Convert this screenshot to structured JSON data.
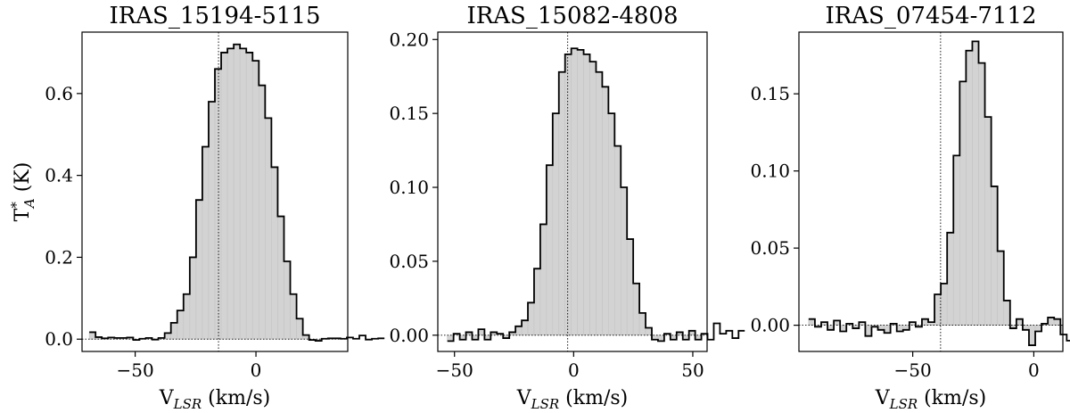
{
  "chart_data": [
    {
      "type": "histogram",
      "title": "IRAS_15194-5115",
      "xlabel": {
        "main": "V",
        "sub": "LSR",
        "rest": " (km/s)"
      },
      "ylabel": {
        "main": "T",
        "sup": "*",
        "sub": "A",
        "rest": " (K)"
      },
      "xlim": [
        -72,
        38
      ],
      "ylim": [
        -0.03,
        0.75
      ],
      "xticks": [
        -50,
        0
      ],
      "xtick_labels": [
        "−50",
        "0"
      ],
      "yticks": [
        0.0,
        0.2,
        0.4,
        0.6
      ],
      "ytick_labels": [
        "0.0",
        "0.2",
        "0.4",
        "0.6"
      ],
      "center_velocity": -15.5,
      "bin_width": 2.6,
      "x_start": -69,
      "values": [
        0.017,
        0.005,
        0.002,
        0.004,
        0.003,
        0.003,
        0.004,
        -0.002,
        0.001,
        0.003,
        -0.001,
        0.003,
        0.015,
        0.04,
        0.07,
        0.11,
        0.2,
        0.34,
        0.47,
        0.58,
        0.66,
        0.7,
        0.71,
        0.72,
        0.71,
        0.7,
        0.68,
        0.62,
        0.54,
        0.42,
        0.3,
        0.19,
        0.11,
        0.05,
        0.01,
        -0.002,
        -0.004,
        0.001,
        0.002,
        0.002,
        0.001,
        0.004,
        0.001,
        0.009,
        -0.001,
        0.001,
        0.002
      ]
    },
    {
      "type": "histogram",
      "title": "IRAS_15082-4808",
      "xlabel": {
        "main": "V",
        "sub": "LSR",
        "rest": " (km/s)"
      },
      "xlim": [
        -57,
        56
      ],
      "ylim": [
        -0.011,
        0.205
      ],
      "xticks": [
        -50,
        0,
        50
      ],
      "xtick_labels": [
        "−50",
        "0",
        "50"
      ],
      "yticks": [
        0.0,
        0.05,
        0.1,
        0.15,
        0.2
      ],
      "ytick_labels": [
        "0.00",
        "0.05",
        "0.10",
        "0.15",
        "0.20"
      ],
      "center_velocity": -2.5,
      "bin_width": 2.6,
      "x_start": -53,
      "values": [
        -0.004,
        0.001,
        -0.003,
        0.002,
        -0.003,
        0.004,
        -0.003,
        0.002,
        0.001,
        -0.002,
        0.002,
        0.006,
        0.01,
        0.022,
        0.045,
        0.075,
        0.115,
        0.15,
        0.178,
        0.19,
        0.194,
        0.193,
        0.19,
        0.185,
        0.178,
        0.168,
        0.15,
        0.128,
        0.1,
        0.065,
        0.035,
        0.015,
        0.005,
        -0.003,
        -0.004,
        0.001,
        -0.003,
        0.002,
        -0.003,
        0.003,
        -0.003,
        0.001,
        -0.003,
        0.008,
        0.001,
        0.003,
        -0.002,
        0.003
      ]
    },
    {
      "type": "histogram",
      "title": "IRAS_07454-7112",
      "xlabel": {
        "main": "V",
        "sub": "LSR",
        "rest": " (km/s)"
      },
      "xlim": [
        -97,
        12
      ],
      "ylim": [
        -0.017,
        0.19
      ],
      "xticks": [
        -50,
        0
      ],
      "xtick_labels": [
        "−50",
        "0"
      ],
      "yticks": [
        0.0,
        0.05,
        0.1,
        0.15
      ],
      "ytick_labels": [
        "0.00",
        "0.05",
        "0.10",
        "0.15"
      ],
      "center_velocity": -38.5,
      "bin_width": 2.6,
      "x_start": -93,
      "values": [
        0.004,
        -0.001,
        0.002,
        -0.003,
        0.003,
        -0.004,
        0.001,
        -0.002,
        0.002,
        -0.007,
        -0.001,
        -0.003,
        -0.005,
        0.001,
        -0.004,
        -0.003,
        0.002,
        -0.001,
        0.004,
        0.002,
        0.02,
        0.027,
        0.06,
        0.11,
        0.158,
        0.178,
        0.184,
        0.17,
        0.135,
        0.09,
        0.048,
        0.016,
        -0.002,
        0.004,
        -0.003,
        -0.013,
        -0.004,
        0.001,
        0.005,
        0.004,
        -0.006,
        -0.01,
        -0.002,
        0.003,
        0.005,
        -0.003
      ]
    }
  ]
}
